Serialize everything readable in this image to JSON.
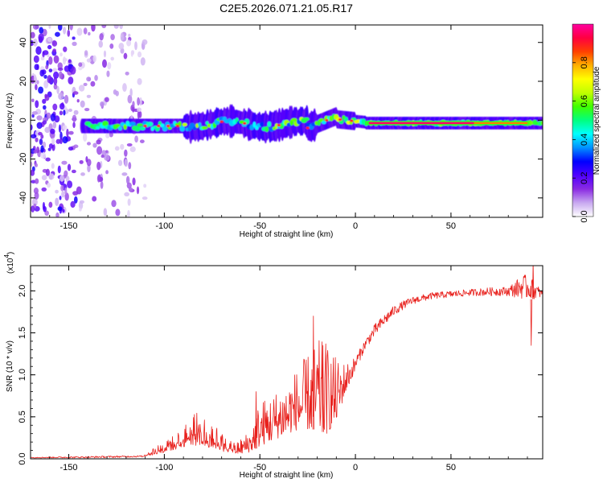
{
  "title": "C2E5.2026.071.21.05.R17",
  "chart_data": [
    {
      "type": "heatmap",
      "name": "spectrogram",
      "xlabel": "Height of straight line (km)",
      "ylabel": "Frequency (Hz)",
      "xlim": [
        -170,
        98
      ],
      "ylim": [
        -50,
        49
      ],
      "x_ticks": [
        -150,
        -100,
        -50,
        0,
        50
      ],
      "x_tick_labels": [
        "-150",
        "-100",
        "-50",
        "0",
        "50"
      ],
      "y_ticks": [
        -40,
        -20,
        0,
        20,
        40
      ],
      "y_tick_labels": [
        "-40",
        "-20",
        "0",
        "20",
        "40"
      ],
      "noise_region_km": [
        -170,
        -110
      ],
      "signal_band_hz": [
        -5,
        3
      ],
      "signal_start_km": -143,
      "strong_line_km": [
        5,
        90
      ],
      "strong_line_freq_hz": -1.5,
      "grid": false
    },
    {
      "type": "colorbar",
      "name": "amplitude-colorbar",
      "label": "Normalized spectral amplitude",
      "range": [
        0,
        1
      ],
      "ticks": [
        0.0,
        0.2,
        0.4,
        0.6,
        0.8
      ],
      "tick_labels": [
        "0.0",
        "0.2",
        "0.4",
        "0.6",
        "0.8"
      ],
      "colors": [
        "#ffffff",
        "#c8a8f0",
        "#8a2be2",
        "#5000ff",
        "#0000ff",
        "#0090ff",
        "#00ffff",
        "#00ff80",
        "#40ff00",
        "#c0ff00",
        "#ffff00",
        "#ffb000",
        "#ff4000",
        "#ff0040",
        "#ff00a0"
      ]
    },
    {
      "type": "line",
      "name": "snr-plot",
      "xlabel": "Height of straight line (km)",
      "ylabel": "SNR (10 * v/v)",
      "multiplier": "(x10",
      "multiplier_exp": "4",
      "multiplier_close": ")",
      "xlim": [
        -170,
        98
      ],
      "ylim": [
        0,
        2.3
      ],
      "x_ticks": [
        -150,
        -100,
        -50,
        0,
        50
      ],
      "x_tick_labels": [
        "-150",
        "-100",
        "-50",
        "0",
        "50"
      ],
      "y_ticks": [
        0.0,
        0.5,
        1.0,
        1.5,
        2.0
      ],
      "y_tick_labels": [
        "0.0",
        "0.5",
        "1.0",
        "1.5",
        "2.0"
      ],
      "line_color": "#e8201c",
      "envelope": {
        "x": [
          -170,
          -140,
          -112,
          -105,
          -95,
          -88,
          -82,
          -75,
          -68,
          -62,
          -55,
          -50,
          -45,
          -40,
          -35,
          -30,
          -25,
          -20,
          -15,
          -10,
          -5,
          0,
          5,
          10,
          15,
          20,
          25,
          30,
          40,
          50,
          60,
          70,
          80,
          88,
          92,
          98
        ],
        "base": [
          0.01,
          0.01,
          0.02,
          0.05,
          0.1,
          0.15,
          0.15,
          0.12,
          0.08,
          0.05,
          0.08,
          0.15,
          0.2,
          0.25,
          0.3,
          0.35,
          0.35,
          0.35,
          0.3,
          0.45,
          0.8,
          1.05,
          1.3,
          1.45,
          1.58,
          1.7,
          1.78,
          1.84,
          1.9,
          1.92,
          1.94,
          1.94,
          1.94,
          1.9,
          1.9,
          1.92
        ],
        "top": [
          0.02,
          0.03,
          0.04,
          0.15,
          0.28,
          0.45,
          0.58,
          0.45,
          0.25,
          0.2,
          0.35,
          0.7,
          0.75,
          0.85,
          0.95,
          1.1,
          1.25,
          1.42,
          1.4,
          1.2,
          1.15,
          1.22,
          1.42,
          1.6,
          1.72,
          1.82,
          1.88,
          1.93,
          1.98,
          2.0,
          2.02,
          2.04,
          2.05,
          2.2,
          2.15,
          2.0
        ]
      },
      "spikes": [
        {
          "x": -52,
          "y": 0.8
        },
        {
          "x": -22,
          "y": 1.7
        },
        {
          "x": -17,
          "y": 1.35
        },
        {
          "x": 93,
          "y": 2.35
        },
        {
          "x": 92,
          "y": 1.35
        }
      ]
    }
  ]
}
